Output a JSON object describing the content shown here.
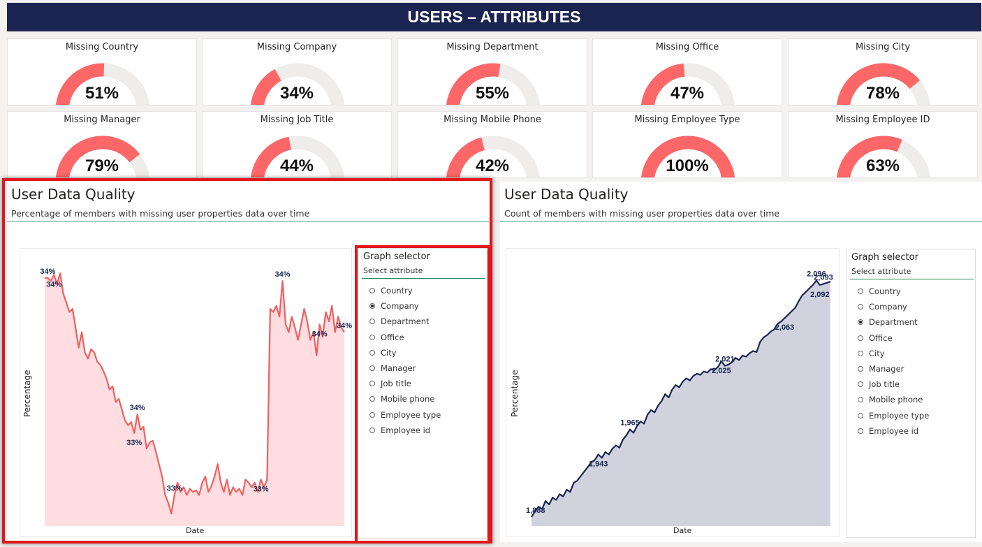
{
  "header": {
    "title": "USERS – ATTRIBUTES"
  },
  "kpis": [
    {
      "label": "Missing Country",
      "value": "51%",
      "pct": 51
    },
    {
      "label": "Missing Company",
      "value": "34%",
      "pct": 34
    },
    {
      "label": "Missing Department",
      "value": "55%",
      "pct": 55
    },
    {
      "label": "Missing Office",
      "value": "47%",
      "pct": 47
    },
    {
      "label": "Missing City",
      "value": "78%",
      "pct": 78
    },
    {
      "label": "Missing Manager",
      "value": "79%",
      "pct": 79
    },
    {
      "label": "Missing Job Title",
      "value": "44%",
      "pct": 44
    },
    {
      "label": "Missing Mobile Phone",
      "value": "42%",
      "pct": 42
    },
    {
      "label": "Missing Employee Type",
      "value": "100%",
      "pct": 100
    },
    {
      "label": "Missing Employee ID",
      "value": "63%",
      "pct": 63
    }
  ],
  "left_panel": {
    "title": "User Data Quality",
    "subtitle": "Percentage of members with missing user properties data over time"
  },
  "right_panel": {
    "title": "User Data Quality",
    "subtitle": "Count of members with missing user properties data over time"
  },
  "left_selector": {
    "title": "Graph selector",
    "subtitle": "Select attribute",
    "options": [
      "Country",
      "Company",
      "Department",
      "Office",
      "City",
      "Manager",
      "Job title",
      "Mobile phone",
      "Employee type",
      "Employee id"
    ],
    "selected": "Company"
  },
  "right_selector": {
    "title": "Graph selector",
    "subtitle": "Select attribute",
    "options": [
      "Country",
      "Company",
      "Department",
      "Office",
      "City",
      "Manager",
      "Job title",
      "Mobile phone",
      "Employee type",
      "Employee id"
    ],
    "selected": "Department"
  },
  "colors": {
    "banner": "#1b2450",
    "gauge_fill": "#fd6767",
    "gauge_track": "#efedeb",
    "left_line": "#f05f5f",
    "left_area": "#ffdde0",
    "right_line": "#1b2450",
    "right_area": "#d0d3de",
    "highlight": "#e3161b"
  },
  "chart_data": [
    {
      "type": "area",
      "xlabel": "Date",
      "ylabel": "Percentage",
      "series": [
        {
          "values": [
            34.4,
            34.4,
            34.38,
            34.42,
            34.36,
            34.43,
            34.3,
            34.24,
            34.18,
            34.2,
            34.08,
            33.95,
            34.05,
            33.92,
            33.88,
            33.94,
            33.92,
            33.86,
            33.84,
            33.8,
            33.75,
            33.68,
            33.7,
            33.6,
            33.62,
            33.55,
            33.48,
            33.45,
            33.47,
            33.4,
            33.52,
            33.42,
            33.44,
            33.3,
            33.34,
            33.35,
            33.28,
            33.2,
            33.12,
            33.0,
            32.95,
            32.88,
            33.0,
            33.08,
            33.02,
            33.05,
            33.0,
            33.04,
            33.02,
            33.03,
            33.0,
            33.08,
            33.12,
            33.02,
            33.06,
            33.12,
            33.2,
            33.08,
            33.02,
            33.1,
            33.0,
            33.05,
            33.02,
            33.04,
            33.0,
            33.1,
            33.08,
            33.05,
            33.08,
            33.02,
            33.1,
            33.05,
            33.1,
            34.2,
            34.18,
            34.22,
            34.15,
            34.38,
            34.1,
            34.05,
            34.15,
            34.08,
            34.0,
            34.1,
            34.2,
            34.12,
            34.0,
            34.05,
            33.9,
            34.1,
            34.02,
            34.18,
            34.12,
            34.22,
            34.05,
            34.15,
            34.08,
            34.05
          ]
        }
      ],
      "data_labels": [
        {
          "text": "34%",
          "index": 1
        },
        {
          "text": "34%",
          "index": 3
        },
        {
          "text": "34%",
          "index": 30
        },
        {
          "text": "33%",
          "index": 29
        },
        {
          "text": "33%",
          "index": 42
        },
        {
          "text": "33%",
          "index": 70
        },
        {
          "text": "34%",
          "index": 77
        },
        {
          "text": "34%",
          "index": 89
        },
        {
          "text": "34%",
          "index": 97
        }
      ],
      "ylim": [
        32.8,
        34.48
      ]
    },
    {
      "type": "area",
      "xlabel": "Date",
      "ylabel": "Percentage",
      "series": [
        {
          "values": [
            1888,
            1893,
            1897,
            1895,
            1902,
            1899,
            1905,
            1903,
            1908,
            1906,
            1912,
            1910,
            1918,
            1920,
            1924,
            1928,
            1932,
            1936,
            1938,
            1943,
            1940,
            1945,
            1943,
            1948,
            1951,
            1949,
            1956,
            1960,
            1965,
            1962,
            1968,
            1972,
            1970,
            1978,
            1982,
            1980,
            1986,
            1990,
            1996,
            1993,
            2000,
            2004,
            2002,
            2007,
            2010,
            2008,
            2012,
            2014,
            2013,
            2016,
            2015,
            2018,
            2017,
            2020,
            2025,
            2021,
            2022,
            2024,
            2028,
            2026,
            2030,
            2029,
            2032,
            2034,
            2033,
            2042,
            2046,
            2048,
            2051,
            2053,
            2058,
            2060,
            2063,
            2066,
            2069,
            2072,
            2078,
            2083,
            2086,
            2089,
            2092,
            2096,
            2092,
            2093,
            2094,
            2095
          ]
        }
      ],
      "data_labels": [
        {
          "text": "1,888",
          "index": 0
        },
        {
          "text": "1,943",
          "index": 19
        },
        {
          "text": "1,965",
          "index": 28
        },
        {
          "text": "2,025",
          "index": 54
        },
        {
          "text": "2,021",
          "index": 55
        },
        {
          "text": "2,063",
          "index": 72
        },
        {
          "text": "2,096",
          "index": 81
        },
        {
          "text": "2,092",
          "index": 82
        },
        {
          "text": "2,093",
          "index": 83
        }
      ],
      "ylim": [
        1880,
        2100
      ]
    }
  ]
}
